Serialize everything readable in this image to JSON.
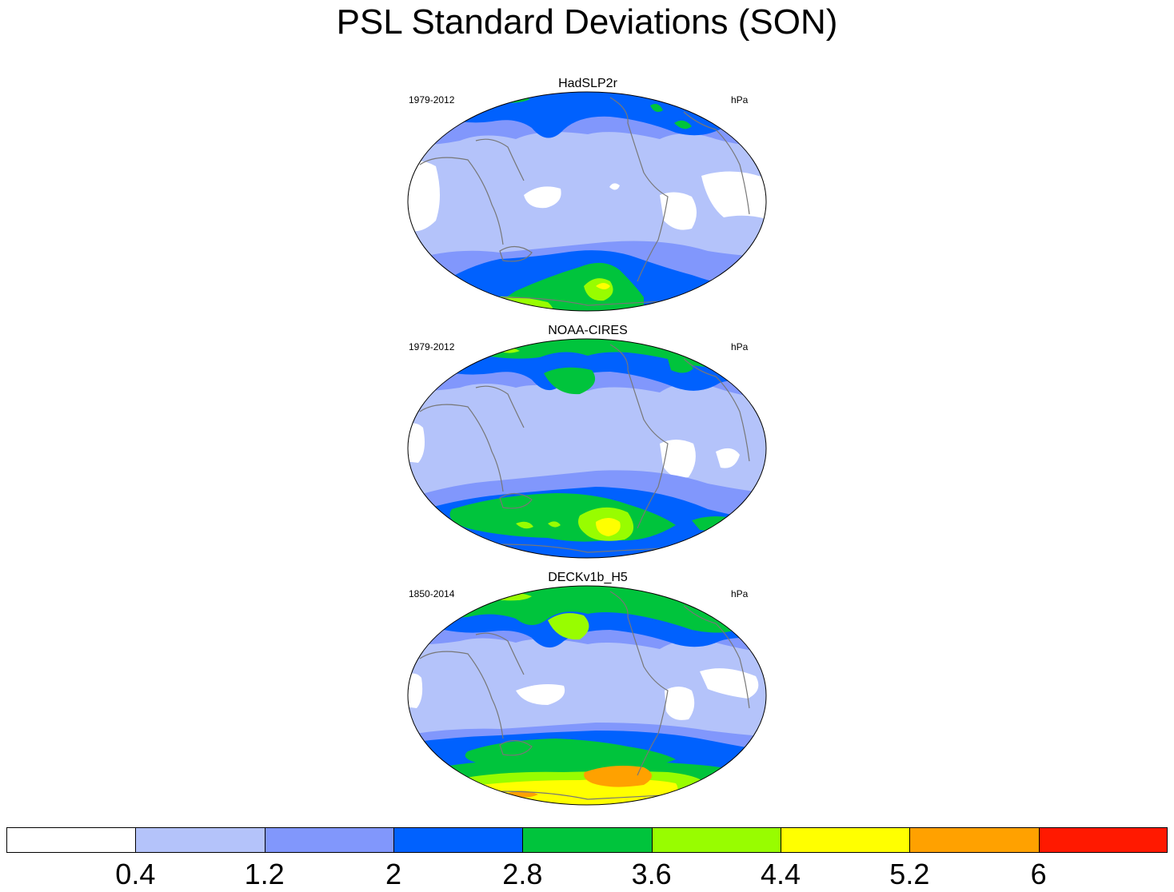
{
  "title": "PSL Standard Deviations (SON)",
  "colors": [
    "#ffffff",
    "#b4c3fa",
    "#8197fc",
    "#0061fe",
    "#00c43c",
    "#98fd00",
    "#ffff00",
    "#ffa100",
    "#ff1900"
  ],
  "colorbar_labels": [
    "0.4",
    "1.2",
    "2",
    "2.8",
    "3.6",
    "4.4",
    "5.2",
    "6"
  ],
  "panels": [
    {
      "title": "HadSLP2r",
      "years": "1979-2012",
      "units": "hPa"
    },
    {
      "title": "NOAA-CIRES",
      "years": "1979-2012",
      "units": "hPa"
    },
    {
      "title": "DECKv1b_H5",
      "years": "1850-2014",
      "units": "hPa"
    }
  ]
}
